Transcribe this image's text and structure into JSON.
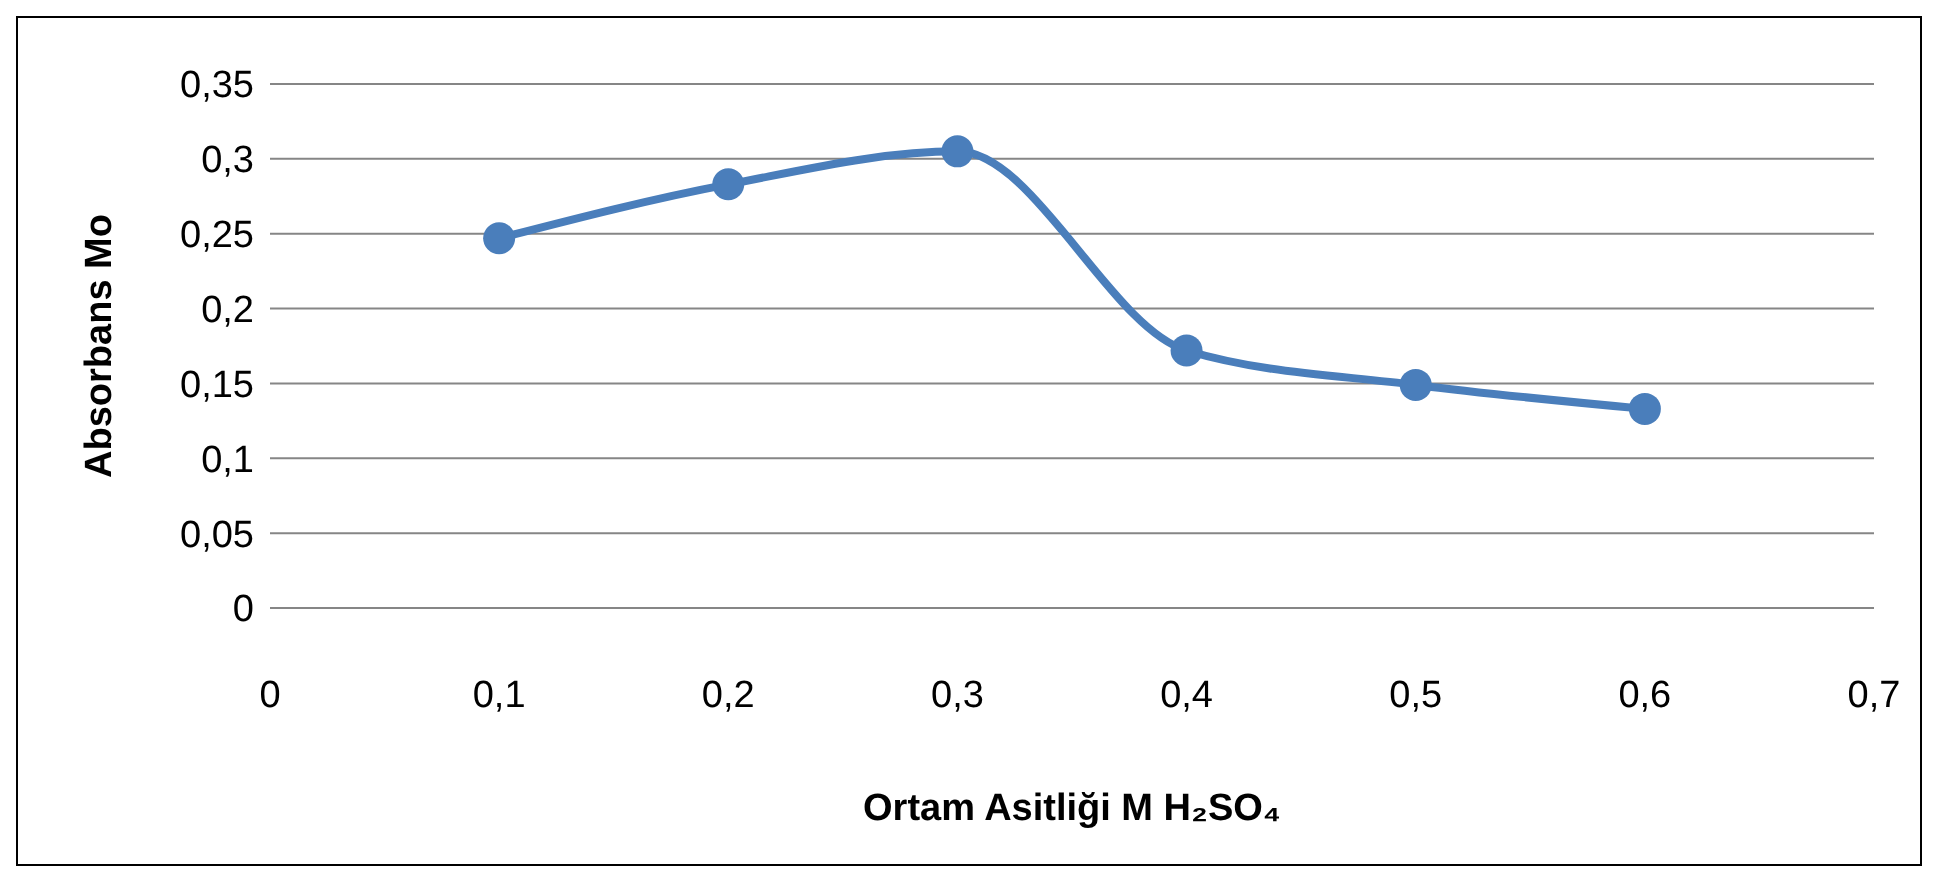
{
  "chart_data": {
    "type": "line",
    "xlabel": "Ortam Asitliği M H₂SO₄",
    "ylabel": "Absorbans Mo",
    "x": [
      0.1,
      0.2,
      0.3,
      0.4,
      0.5,
      0.6
    ],
    "series": [
      {
        "color": "#4a7ebb",
        "values": [
          0.247,
          0.283,
          0.305,
          0.172,
          0.149,
          0.133
        ]
      }
    ],
    "xlim": [
      0,
      0.7
    ],
    "xticks": [
      {
        "value": 0,
        "label": "0"
      },
      {
        "value": 0.1,
        "label": "0,1"
      },
      {
        "value": 0.2,
        "label": "0,2"
      },
      {
        "value": 0.3,
        "label": "0,3"
      },
      {
        "value": 0.4,
        "label": "0,4"
      },
      {
        "value": 0.5,
        "label": "0,5"
      },
      {
        "value": 0.6,
        "label": "0,6"
      },
      {
        "value": 0.7,
        "label": "0,7"
      }
    ],
    "ylim": [
      0,
      0.35
    ],
    "yticks": [
      {
        "value": 0,
        "label": "0"
      },
      {
        "value": 0.05,
        "label": "0,05"
      },
      {
        "value": 0.1,
        "label": "0,1"
      },
      {
        "value": 0.15,
        "label": "0,15"
      },
      {
        "value": 0.2,
        "label": "0,2"
      },
      {
        "value": 0.25,
        "label": "0,25"
      },
      {
        "value": 0.3,
        "label": "0,3"
      },
      {
        "value": 0.35,
        "label": "0,35"
      }
    ],
    "grid": "y",
    "marker": "circle",
    "line_style": "solid",
    "legend": false
  }
}
